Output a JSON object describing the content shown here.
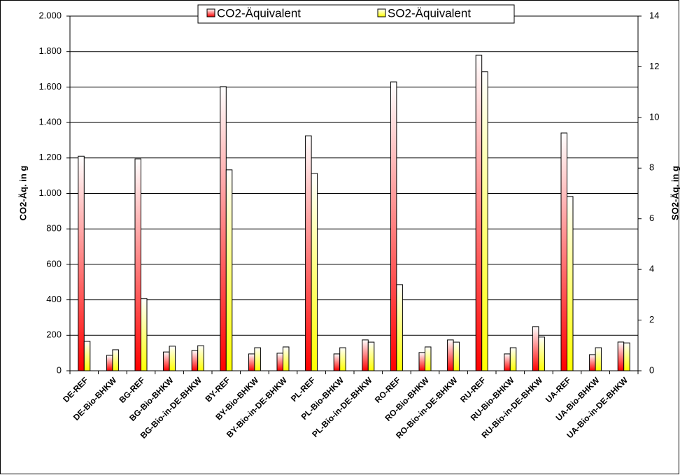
{
  "chart_data": {
    "type": "bar",
    "categories": [
      "DE-REF",
      "DE-Bio-BHKW",
      "BG-REF",
      "BG-Bio-BHKW",
      "BG-Bio-in-DE-BHKW",
      "BY-REF",
      "BY-Bio-BHKW",
      "BY-Bio-in-DE-BHKW",
      "PL-REF",
      "PL-Bio-BHKW",
      "PL-Bio-in-DE-BHKW",
      "RO-REF",
      "RO-Bio-BHKW",
      "RO-Bio-in-DE-BHKW",
      "RU-REF",
      "RU-Bio-BHKW",
      "RU-Bio-in-DE-BHKW",
      "UA-REF",
      "UA-Bio-BHKW",
      "UA-Bio-in-DE-BHKW"
    ],
    "series": [
      {
        "name": "CO2-Äquivalent",
        "color": "#ff0000",
        "values": [
          1210,
          87,
          1195,
          106,
          114,
          1602,
          95,
          99,
          1325,
          95,
          174,
          1629,
          103,
          174,
          1779,
          95,
          249,
          1341,
          91,
          162
        ]
      },
      {
        "name": "SO2-Äquivalent",
        "color": "#ffff00",
        "axis": "y2",
        "values": [
          1.16,
          0.83,
          2.85,
          0.97,
          0.99,
          7.93,
          0.91,
          0.94,
          7.79,
          0.91,
          1.13,
          3.4,
          0.94,
          1.13,
          11.8,
          0.91,
          1.33,
          6.88,
          0.91,
          1.1
        ]
      }
    ],
    "ylabel": "CO2-Äq. in g",
    "y2label": "SO2-Äq. in g",
    "ylim": [
      0,
      2000
    ],
    "yticks": [
      0,
      200,
      400,
      600,
      800,
      {
        "value": 1000,
        "label": "1.000"
      },
      {
        "value": 1200,
        "label": "1.200"
      },
      {
        "value": 1400,
        "label": "1.400"
      },
      {
        "value": 1600,
        "label": "1.600"
      },
      {
        "value": 1800,
        "label": "1.800"
      },
      {
        "value": 2000,
        "label": "2.000"
      }
    ],
    "y2lim": [
      0,
      14
    ],
    "y2ticks": [
      0,
      2,
      4,
      6,
      8,
      10,
      12,
      14
    ],
    "grid": true,
    "legend": "top"
  }
}
